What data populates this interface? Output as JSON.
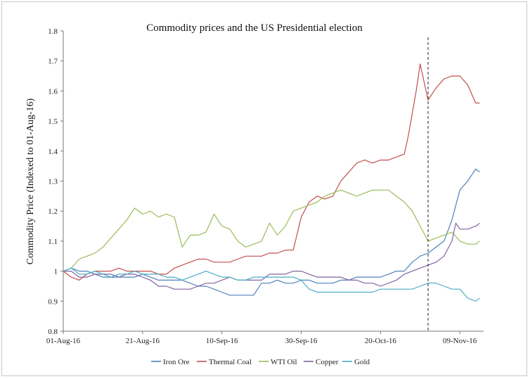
{
  "chart_data": {
    "type": "line",
    "title": "Commodity prices and the US Presidential election",
    "xlabel": "",
    "ylabel": "Commodity Price (Indexed to 01-Aug-16)",
    "x_ticks": [
      "01-Aug-16",
      "21-Aug-16",
      "10-Sep-16",
      "30-Sep-16",
      "20-Oct-16",
      "09-Nov-16"
    ],
    "x_tick_days": [
      0,
      20,
      40,
      60,
      80,
      100
    ],
    "x_range_days": [
      0,
      106
    ],
    "y_ticks": [
      "0.8",
      "0.9",
      "1",
      "1.1",
      "1.2",
      "1.3",
      "1.4",
      "1.5",
      "1.6",
      "1.7",
      "1.8"
    ],
    "ylim": [
      0.8,
      1.8
    ],
    "grid": false,
    "legend_position": "bottom",
    "event_marker": {
      "x": 92,
      "style": "dashed"
    },
    "series": [
      {
        "name": "Iron Ore",
        "color": "#4f81bd",
        "x": [
          0,
          2,
          4,
          6,
          8,
          10,
          12,
          14,
          16,
          18,
          20,
          22,
          24,
          26,
          28,
          30,
          32,
          34,
          36,
          38,
          40,
          42,
          44,
          46,
          48,
          50,
          52,
          54,
          56,
          58,
          60,
          62,
          64,
          66,
          68,
          70,
          72,
          74,
          76,
          78,
          80,
          82,
          84,
          86,
          88,
          90,
          92,
          94,
          96,
          98,
          100,
          102,
          104,
          105
        ],
        "values": [
          1.0,
          1.01,
          1.0,
          1.0,
          0.99,
          0.98,
          0.98,
          0.98,
          0.98,
          0.98,
          0.99,
          0.98,
          0.97,
          0.97,
          0.97,
          0.97,
          0.96,
          0.95,
          0.95,
          0.94,
          0.93,
          0.92,
          0.92,
          0.92,
          0.92,
          0.96,
          0.96,
          0.97,
          0.96,
          0.96,
          0.97,
          0.97,
          0.96,
          0.96,
          0.96,
          0.97,
          0.97,
          0.98,
          0.98,
          0.98,
          0.98,
          0.99,
          1.0,
          1.0,
          1.03,
          1.05,
          1.06,
          1.08,
          1.1,
          1.17,
          1.27,
          1.3,
          1.34,
          1.33
        ]
      },
      {
        "name": "Thermal Coal",
        "color": "#c0504d",
        "x": [
          0,
          2,
          4,
          6,
          8,
          10,
          12,
          14,
          16,
          18,
          20,
          22,
          24,
          26,
          28,
          30,
          32,
          34,
          36,
          38,
          40,
          42,
          44,
          46,
          48,
          50,
          52,
          54,
          56,
          58,
          60,
          62,
          64,
          66,
          68,
          70,
          72,
          74,
          76,
          78,
          80,
          82,
          84,
          86,
          87,
          89,
          90,
          92,
          94,
          96,
          98,
          100,
          102,
          104,
          105
        ],
        "values": [
          1.0,
          0.98,
          0.97,
          0.99,
          1.0,
          1.0,
          1.0,
          1.01,
          1.0,
          1.0,
          1.0,
          1.0,
          0.99,
          0.99,
          1.01,
          1.02,
          1.03,
          1.04,
          1.04,
          1.03,
          1.03,
          1.03,
          1.04,
          1.05,
          1.05,
          1.05,
          1.06,
          1.06,
          1.07,
          1.07,
          1.18,
          1.23,
          1.25,
          1.24,
          1.25,
          1.3,
          1.33,
          1.36,
          1.37,
          1.36,
          1.37,
          1.37,
          1.38,
          1.39,
          1.45,
          1.6,
          1.69,
          1.57,
          1.61,
          1.64,
          1.65,
          1.65,
          1.62,
          1.56,
          1.56
        ]
      },
      {
        "name": "WTI Oil",
        "color": "#9bbb59",
        "x": [
          0,
          2,
          4,
          6,
          8,
          10,
          12,
          14,
          16,
          18,
          20,
          22,
          24,
          26,
          28,
          30,
          32,
          34,
          36,
          38,
          40,
          42,
          44,
          46,
          48,
          50,
          52,
          54,
          56,
          58,
          60,
          62,
          64,
          66,
          68,
          70,
          72,
          74,
          76,
          78,
          80,
          82,
          84,
          86,
          88,
          90,
          92,
          94,
          96,
          98,
          100,
          102,
          104,
          105
        ],
        "values": [
          1.0,
          1.01,
          1.04,
          1.05,
          1.06,
          1.08,
          1.11,
          1.14,
          1.17,
          1.21,
          1.19,
          1.2,
          1.18,
          1.19,
          1.18,
          1.08,
          1.12,
          1.12,
          1.13,
          1.19,
          1.15,
          1.14,
          1.1,
          1.08,
          1.09,
          1.1,
          1.16,
          1.12,
          1.15,
          1.2,
          1.21,
          1.22,
          1.23,
          1.25,
          1.26,
          1.27,
          1.26,
          1.25,
          1.26,
          1.27,
          1.27,
          1.27,
          1.25,
          1.23,
          1.2,
          1.15,
          1.1,
          1.11,
          1.12,
          1.13,
          1.1,
          1.09,
          1.09,
          1.1
        ]
      },
      {
        "name": "Copper",
        "color": "#8064a2",
        "x": [
          0,
          2,
          4,
          6,
          8,
          10,
          12,
          14,
          16,
          18,
          20,
          22,
          24,
          26,
          28,
          30,
          32,
          34,
          36,
          38,
          40,
          42,
          44,
          46,
          48,
          50,
          52,
          54,
          56,
          58,
          60,
          62,
          64,
          66,
          68,
          70,
          72,
          74,
          76,
          78,
          80,
          82,
          84,
          86,
          88,
          90,
          92,
          94,
          96,
          98,
          99,
          100,
          102,
          104,
          105
        ],
        "values": [
          1.0,
          1.0,
          0.98,
          0.98,
          0.99,
          0.99,
          0.99,
          0.98,
          0.99,
          0.99,
          0.98,
          0.97,
          0.95,
          0.95,
          0.94,
          0.94,
          0.94,
          0.95,
          0.96,
          0.96,
          0.97,
          0.98,
          0.97,
          0.97,
          0.97,
          0.97,
          0.99,
          0.99,
          0.99,
          1.0,
          1.0,
          0.99,
          0.98,
          0.98,
          0.98,
          0.98,
          0.97,
          0.97,
          0.96,
          0.96,
          0.95,
          0.96,
          0.97,
          0.99,
          1.0,
          1.01,
          1.02,
          1.03,
          1.05,
          1.1,
          1.16,
          1.14,
          1.14,
          1.15,
          1.16
        ]
      },
      {
        "name": "Gold",
        "color": "#4bacc6",
        "x": [
          0,
          2,
          4,
          6,
          8,
          10,
          12,
          14,
          16,
          18,
          20,
          22,
          24,
          26,
          28,
          30,
          32,
          34,
          36,
          38,
          40,
          42,
          44,
          46,
          48,
          50,
          52,
          54,
          56,
          58,
          60,
          62,
          64,
          66,
          68,
          70,
          72,
          74,
          76,
          78,
          80,
          82,
          84,
          86,
          88,
          90,
          92,
          94,
          96,
          98,
          100,
          102,
          104,
          105
        ],
        "values": [
          1.0,
          1.01,
          0.99,
          0.99,
          1.0,
          0.99,
          0.98,
          0.99,
          0.99,
          1.0,
          0.99,
          0.99,
          0.99,
          0.98,
          0.98,
          0.97,
          0.98,
          0.99,
          1.0,
          0.99,
          0.98,
          0.98,
          0.97,
          0.97,
          0.98,
          0.98,
          0.98,
          0.98,
          0.98,
          0.98,
          0.97,
          0.94,
          0.93,
          0.93,
          0.93,
          0.93,
          0.93,
          0.93,
          0.93,
          0.93,
          0.94,
          0.94,
          0.94,
          0.94,
          0.94,
          0.95,
          0.96,
          0.96,
          0.95,
          0.94,
          0.94,
          0.91,
          0.9,
          0.91
        ]
      }
    ]
  }
}
